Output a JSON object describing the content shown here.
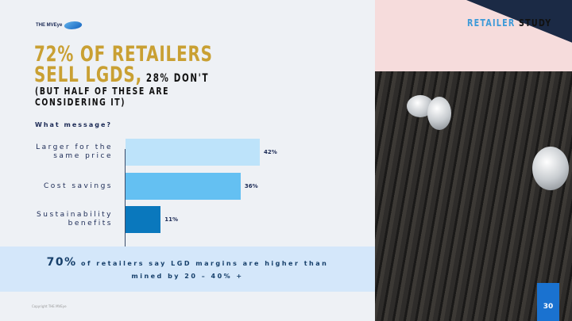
{
  "logo": {
    "text": "THE MVEye"
  },
  "header": {
    "title_line1": "72% OF RETAILERS",
    "title_line2": "SELL LGDS,",
    "title_aside": "28% DON'T",
    "subtitle_line1": "(BUT HALF OF THESE ARE",
    "subtitle_line2": "CONSIDERING IT)",
    "tag_part1": "RETAILER",
    "tag_part2": "STUDY"
  },
  "chart_data": {
    "type": "bar",
    "orientation": "horizontal",
    "title": "What message?",
    "categories": [
      "Larger for the same price",
      "Cost savings",
      "Sustainability benefits"
    ],
    "category_lines": [
      [
        "Larger for the",
        "same price"
      ],
      [
        "Cost savings"
      ],
      [
        "Sustainability",
        "benefits"
      ]
    ],
    "values": [
      42,
      36,
      11
    ],
    "labels": [
      "42%",
      "36%",
      "11%"
    ],
    "colors": [
      "#bde3fa",
      "#64c0f2",
      "#0a78bd"
    ],
    "xlim": [
      0,
      42
    ],
    "grid": false
  },
  "callout": {
    "highlight": "70%",
    "text_line1": "of retailers say LGD margins are higher than",
    "text_line2": "mined by 20 – 40% +"
  },
  "footer": {
    "copyright": "Copyright THE MVEye",
    "page_number": "30"
  }
}
